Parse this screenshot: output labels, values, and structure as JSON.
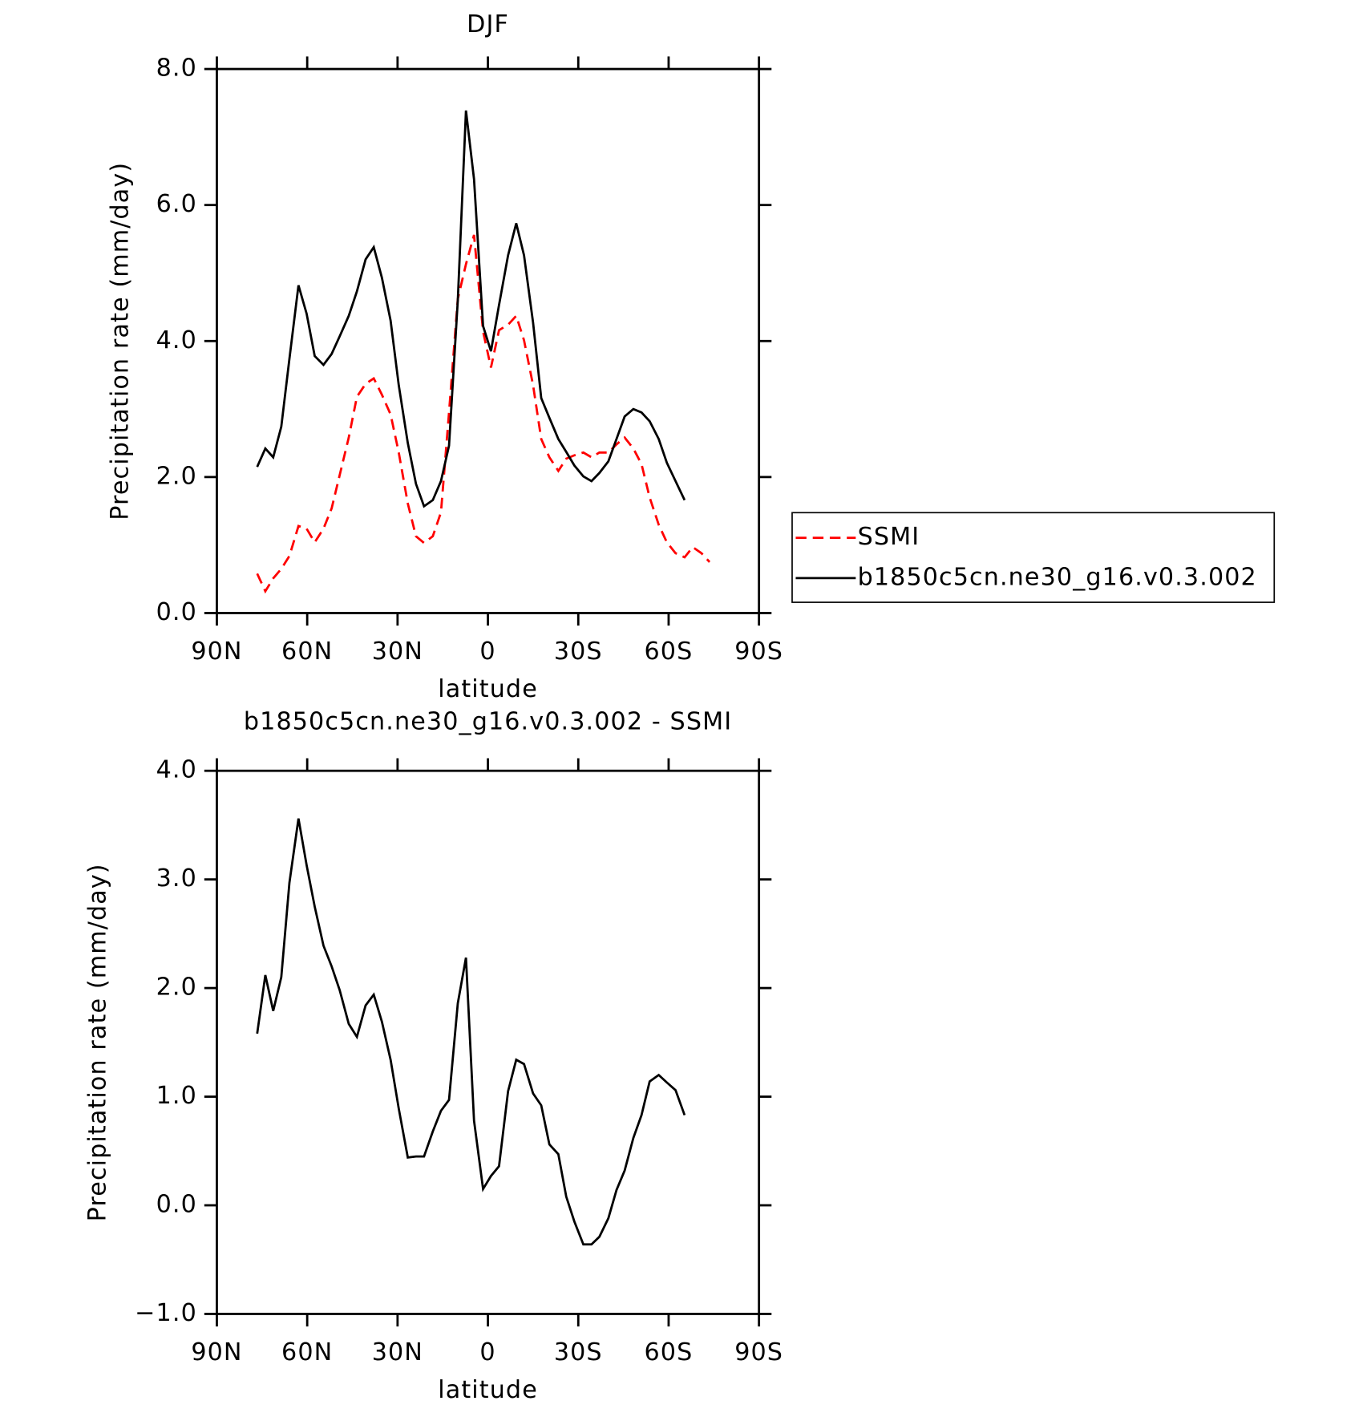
{
  "chart_data": [
    {
      "type": "line",
      "title": "DJF",
      "xlabel": "latitude",
      "ylabel": "Precipitation rate (mm/day)",
      "x": [
        76.6,
        73.9,
        71.3,
        68.6,
        65.9,
        62.9,
        60.2,
        57.5,
        54.6,
        51.9,
        49.2,
        46.2,
        43.5,
        40.6,
        37.9,
        35.2,
        32.3,
        29.6,
        26.6,
        23.9,
        21.2,
        18.3,
        15.6,
        12.9,
        10.0,
        7.3,
        4.6,
        1.6,
        -1.0,
        -3.7,
        -6.7,
        -9.4,
        -12.0,
        -15.0,
        -17.7,
        -20.4,
        -23.4,
        -26.0,
        -28.7,
        -31.7,
        -34.4,
        -37.0,
        -40.0,
        -42.7,
        -45.4,
        -48.3,
        -51.0,
        -53.7,
        -56.7,
        -59.4,
        -62.3,
        -65.3,
        -68.0,
        -70.9,
        -73.6
      ],
      "series": [
        {
          "name": "SSMI",
          "color": "#ff0000",
          "style": "dashed",
          "values": [
            0.58,
            0.32,
            0.51,
            0.65,
            0.84,
            1.28,
            1.24,
            1.04,
            1.24,
            1.54,
            2.03,
            2.58,
            3.18,
            3.37,
            3.45,
            3.21,
            2.92,
            2.36,
            1.61,
            1.13,
            1.03,
            1.13,
            1.48,
            2.95,
            4.62,
            5.13,
            5.56,
            4.14,
            3.61,
            4.16,
            4.24,
            4.37,
            4.01,
            3.35,
            2.56,
            2.29,
            2.09,
            2.27,
            2.32,
            2.36,
            2.29,
            2.36,
            2.36,
            2.48,
            2.58,
            2.42,
            2.19,
            1.7,
            1.3,
            1.04,
            0.88,
            0.82,
            0.97,
            0.88,
            0.75
          ]
        },
        {
          "name": "b1850c5cn.ne30_g16.v0.3.002",
          "color": "#000000",
          "style": "solid",
          "values": [
            2.15,
            2.42,
            2.29,
            2.74,
            3.74,
            4.82,
            4.4,
            3.78,
            3.65,
            3.81,
            4.07,
            4.37,
            4.73,
            5.2,
            5.38,
            4.93,
            4.3,
            3.35,
            2.5,
            1.9,
            1.57,
            1.66,
            1.94,
            2.46,
            4.6,
            7.39,
            6.38,
            4.22,
            3.85,
            4.53,
            5.26,
            5.73,
            5.26,
            4.27,
            3.16,
            2.87,
            2.56,
            2.37,
            2.17,
            2.01,
            1.94,
            2.06,
            2.23,
            2.56,
            2.89,
            3.0,
            2.95,
            2.82,
            2.56,
            2.21,
            1.94,
            1.66,
            null,
            null,
            null
          ]
        }
      ],
      "xlim": [
        90,
        -90
      ],
      "xticks": [
        {
          "value": 90,
          "label": "90N"
        },
        {
          "value": 60,
          "label": "60N"
        },
        {
          "value": 30,
          "label": "30N"
        },
        0,
        {
          "value": -30,
          "label": "30S"
        },
        {
          "value": -60,
          "label": "60S"
        },
        {
          "value": -90,
          "label": "90S"
        }
      ],
      "ylim": [
        0,
        8
      ],
      "yticks": [
        {
          "value": 0,
          "label": "0.0"
        },
        {
          "value": 2,
          "label": "2.0"
        },
        {
          "value": 4,
          "label": "4.0"
        },
        {
          "value": 6,
          "label": "6.0"
        },
        {
          "value": 8,
          "label": "8.0"
        }
      ],
      "legend": "right"
    },
    {
      "type": "line",
      "title": "b1850c5cn.ne30_g16.v0.3.002 - SSMI",
      "xlabel": "latitude",
      "ylabel": "Precipitation rate (mm/day)",
      "x": [
        76.6,
        73.9,
        71.3,
        68.6,
        65.9,
        62.9,
        60.2,
        57.5,
        54.6,
        51.9,
        49.2,
        46.2,
        43.5,
        40.6,
        37.9,
        35.2,
        32.3,
        29.6,
        26.6,
        23.9,
        21.2,
        18.3,
        15.6,
        12.9,
        10.0,
        7.3,
        4.6,
        1.6,
        -1.0,
        -3.7,
        -6.7,
        -9.4,
        -12.0,
        -15.0,
        -17.7,
        -20.4,
        -23.4,
        -26.0,
        -28.7,
        -31.7,
        -34.4,
        -37.0,
        -40.0,
        -42.7,
        -45.4,
        -48.3,
        -51.0,
        -53.7,
        -56.7,
        -59.4,
        -62.3,
        -65.3
      ],
      "values": [
        1.58,
        2.12,
        1.79,
        2.1,
        2.97,
        3.56,
        3.13,
        2.75,
        2.39,
        2.2,
        1.98,
        1.67,
        1.55,
        1.84,
        1.94,
        1.69,
        1.34,
        0.89,
        0.44,
        0.45,
        0.45,
        0.68,
        0.87,
        0.97,
        1.86,
        2.28,
        0.78,
        0.15,
        0.27,
        0.36,
        1.05,
        1.34,
        1.3,
        1.03,
        0.92,
        0.56,
        0.47,
        0.08,
        -0.15,
        -0.36,
        -0.36,
        -0.29,
        -0.12,
        0.14,
        0.32,
        0.62,
        0.83,
        1.14,
        1.2,
        1.13,
        1.06,
        0.83
      ],
      "color": "#000000",
      "xlim": [
        90,
        -90
      ],
      "xticks": [
        {
          "value": 90,
          "label": "90N"
        },
        {
          "value": 60,
          "label": "60N"
        },
        {
          "value": 30,
          "label": "30N"
        },
        0,
        {
          "value": -30,
          "label": "30S"
        },
        {
          "value": -60,
          "label": "60S"
        },
        {
          "value": -90,
          "label": "90S"
        }
      ],
      "ylim": [
        -1,
        4
      ],
      "yticks": [
        {
          "value": -1,
          "label": "−1.0"
        },
        {
          "value": 0,
          "label": "0.0"
        },
        {
          "value": 1,
          "label": "1.0"
        },
        {
          "value": 2,
          "label": "2.0"
        },
        {
          "value": 3,
          "label": "3.0"
        },
        {
          "value": 4,
          "label": "4.0"
        }
      ]
    }
  ]
}
